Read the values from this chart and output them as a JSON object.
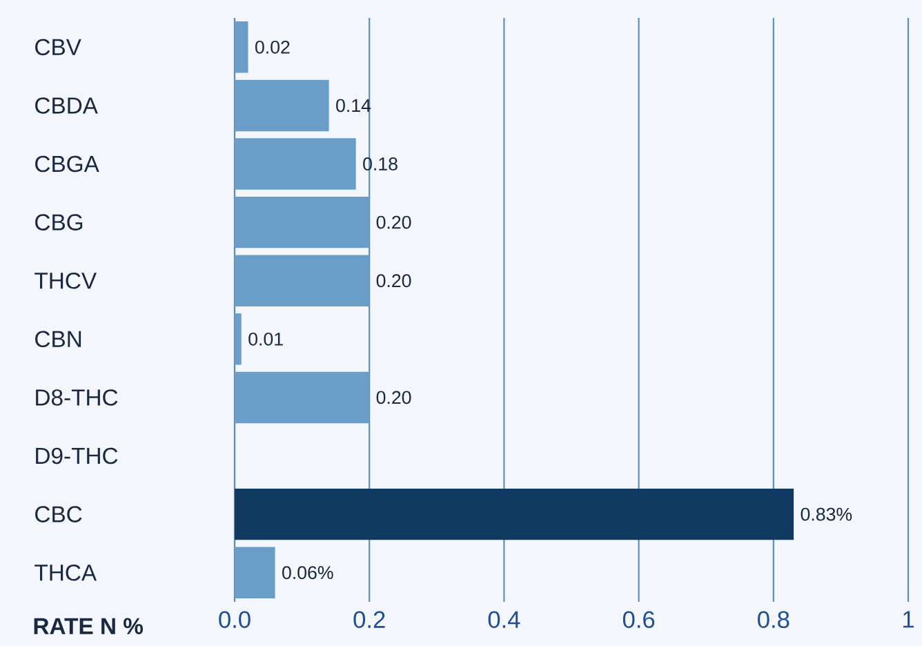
{
  "chart_data": {
    "type": "bar",
    "orientation": "horizontal",
    "categories": [
      "CBV",
      "CBDA",
      "CBGA",
      "CBG",
      "THCV",
      "CBN",
      "D8-THC",
      "D9-THC",
      "CBC",
      "THCA"
    ],
    "values": [
      0.02,
      0.14,
      0.18,
      0.2,
      0.2,
      0.01,
      0.2,
      null,
      0.83,
      0.06
    ],
    "value_labels": [
      "0.02",
      "0.14",
      "0.18",
      "0.20",
      "0.20",
      "0.01",
      "0.20",
      null,
      "0.83%",
      "0.06%"
    ],
    "colors": [
      "#6a9ec9",
      "#6a9ec9",
      "#6a9ec9",
      "#6a9ec9",
      "#6a9ec9",
      "#6a9ec9",
      "#6a9ec9",
      "#6a9ec9",
      "#103a62",
      "#6a9ec9"
    ],
    "xlabel": "RATE N %",
    "xlim": [
      0,
      1
    ],
    "xticks": [
      {
        "value": 0,
        "label": "0.0"
      },
      {
        "value": 0.2,
        "label": "0.2"
      },
      {
        "value": 0.4,
        "label": "0.4"
      },
      {
        "value": 0.6,
        "label": "0.6"
      },
      {
        "value": 0.8,
        "label": "0.8"
      },
      {
        "value": 1,
        "label": "1"
      }
    ],
    "grid": "x"
  }
}
